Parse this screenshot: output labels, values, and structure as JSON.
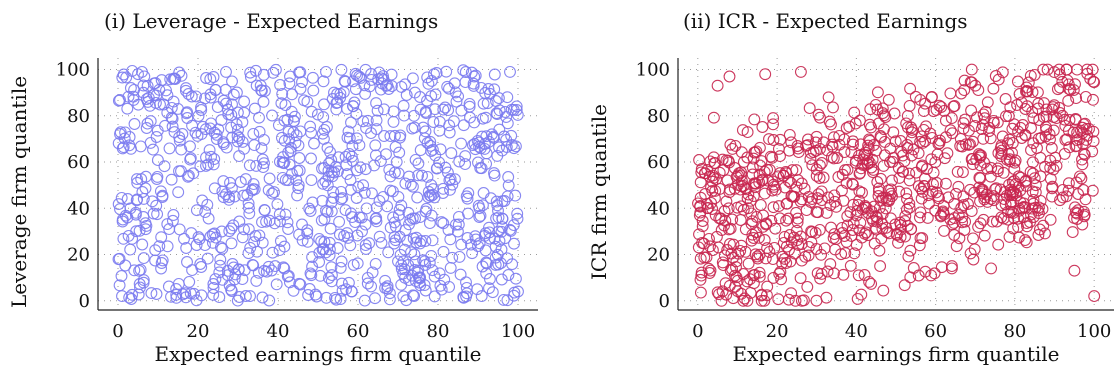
{
  "chart_data": [
    {
      "type": "scatter",
      "title": "(i) Leverage - Expected Earnings",
      "xlabel": "Expected earnings firm quantile",
      "ylabel": "Leverage firm quantile",
      "xlim": [
        -5,
        105
      ],
      "ylim": [
        -4,
        105
      ],
      "xticks": [
        0,
        20,
        40,
        60,
        80,
        100
      ],
      "yticks": [
        0,
        20,
        40,
        60,
        80,
        100
      ],
      "grid": "dotted",
      "marker": "open-circle",
      "color": "#7b7bf0",
      "n_points": 1000,
      "sample_points": [
        [
          1,
          2
        ],
        [
          5,
          98
        ],
        [
          6,
          99
        ],
        [
          9,
          89
        ],
        [
          12,
          91
        ],
        [
          15,
          83
        ],
        [
          17,
          92
        ],
        [
          19,
          3
        ],
        [
          22,
          62
        ],
        [
          27,
          99
        ],
        [
          30,
          74
        ],
        [
          33,
          2
        ],
        [
          36,
          34
        ],
        [
          39,
          47
        ],
        [
          43,
          97
        ],
        [
          46,
          33
        ],
        [
          49,
          68
        ],
        [
          52,
          99
        ],
        [
          55,
          56
        ],
        [
          57,
          5
        ],
        [
          61,
          30
        ],
        [
          66,
          94
        ],
        [
          70,
          17
        ],
        [
          74,
          80
        ],
        [
          79,
          98
        ],
        [
          83,
          48
        ],
        [
          87,
          8
        ],
        [
          91,
          71
        ],
        [
          95,
          39
        ],
        [
          98,
          99
        ],
        [
          99,
          66
        ],
        [
          100,
          4
        ]
      ]
    },
    {
      "type": "scatter",
      "title": "(ii) ICR - Expected Earnings",
      "xlabel": "Expected earnings firm quantile",
      "ylabel": "ICR firm quantile",
      "xlim": [
        -5,
        105
      ],
      "ylim": [
        -4,
        105
      ],
      "xticks": [
        0,
        20,
        40,
        60,
        80,
        100
      ],
      "yticks": [
        0,
        20,
        40,
        60,
        80,
        100
      ],
      "grid": "dotted",
      "marker": "open-circle",
      "color": "#c8264f",
      "n_points": 1000,
      "sample_points": [
        [
          1,
          57
        ],
        [
          3,
          12
        ],
        [
          5,
          93
        ],
        [
          8,
          97
        ],
        [
          11,
          3
        ],
        [
          14,
          11
        ],
        [
          17,
          98
        ],
        [
          19,
          79
        ],
        [
          23,
          22
        ],
        [
          26,
          99
        ],
        [
          30,
          54
        ],
        [
          33,
          88
        ],
        [
          37,
          28
        ],
        [
          42,
          63
        ],
        [
          46,
          15
        ],
        [
          49,
          52
        ],
        [
          53,
          75
        ],
        [
          56,
          24
        ],
        [
          59,
          88
        ],
        [
          62,
          41
        ],
        [
          66,
          27
        ],
        [
          70,
          93
        ],
        [
          74,
          14
        ],
        [
          78,
          61
        ],
        [
          82,
          76
        ],
        [
          85,
          53
        ],
        [
          89,
          35
        ],
        [
          92,
          80
        ],
        [
          95,
          13
        ],
        [
          97,
          33
        ],
        [
          99,
          96
        ],
        [
          100,
          2
        ]
      ]
    }
  ]
}
